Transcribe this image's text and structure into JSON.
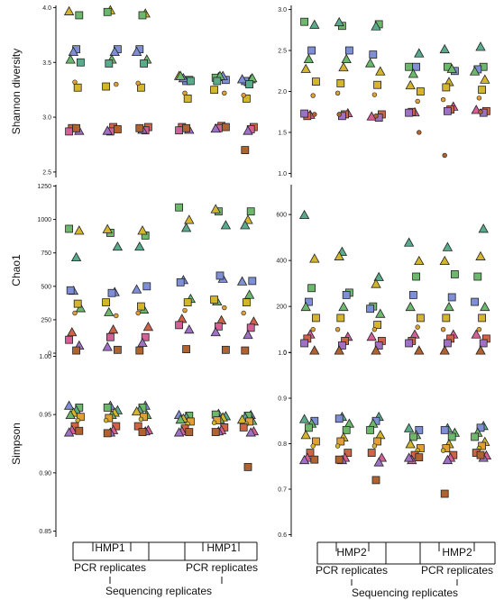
{
  "figure": {
    "colors": {
      "blue": "#7f8fd6",
      "green": "#6cb96c",
      "teal": "#5aab8c",
      "yellow": "#d4b52c",
      "orange": "#e0a032",
      "pink": "#d65f96",
      "red": "#cf6348",
      "brown": "#b0632f",
      "purple": "#a070c6"
    },
    "bottom": {
      "left": {
        "group1": "HMP1",
        "group2": "HMP1",
        "pcr1": "PCR replicates",
        "pcr2": "PCR replicates",
        "seq": "Sequencing replicates"
      },
      "right": {
        "group1": "HMP2",
        "group2": "HMP2",
        "pcr1": "PCR replicates",
        "pcr2": "PCR replicates",
        "seq": "Sequencing replicates"
      }
    }
  },
  "chart_data": [
    {
      "type": "scatter",
      "panel": "shannon-hmp1",
      "ylabel": "Shannon diversity",
      "ylim": [
        2.45,
        4.02
      ],
      "yticks": [
        "2.5",
        "3.0",
        "3.5",
        "4.0"
      ],
      "ytick_values": [
        2.5,
        3.0,
        3.5,
        4.0
      ],
      "x_positions": 6,
      "series": [
        {
          "name": "",
          "color": "yellow",
          "shape": "triangle",
          "values": [
            3.97,
            3.98,
            3.95,
            3.38,
            3.37,
            3.35
          ]
        },
        {
          "name": "",
          "color": "green",
          "shape": "square",
          "values": [
            3.93,
            3.96,
            3.93,
            3.34,
            3.36,
            3.32
          ]
        },
        {
          "name": "",
          "color": "blue",
          "shape": "square",
          "values": [
            3.62,
            3.62,
            3.62,
            3.33,
            3.34,
            3.33
          ]
        },
        {
          "name": "",
          "color": "blue",
          "shape": "triangle",
          "values": [
            3.6,
            3.6,
            3.6,
            3.36,
            3.38,
            3.35
          ]
        },
        {
          "name": "",
          "color": "green",
          "shape": "triangle",
          "values": [
            3.53,
            3.53,
            3.53,
            3.38,
            3.38,
            3.36
          ]
        },
        {
          "name": "",
          "color": "teal",
          "shape": "square",
          "values": [
            3.5,
            3.49,
            3.49,
            3.33,
            3.33,
            3.3
          ]
        },
        {
          "name": "",
          "color": "yellow",
          "shape": "square",
          "values": [
            3.27,
            3.28,
            3.27,
            3.17,
            3.25,
            3.17
          ]
        },
        {
          "name": "",
          "color": "orange",
          "shape": "circle",
          "values": [
            3.32,
            3.3,
            3.31,
            3.22,
            3.22,
            3.2
          ]
        },
        {
          "name": "",
          "color": "red",
          "shape": "square",
          "values": [
            2.9,
            2.91,
            2.91,
            2.91,
            2.92,
            2.91
          ]
        },
        {
          "name": "",
          "color": "pink",
          "shape": "square",
          "values": [
            2.87,
            2.87,
            2.88,
            2.88,
            2.9,
            2.89
          ]
        },
        {
          "name": "",
          "color": "purple",
          "shape": "triangle",
          "values": [
            2.88,
            2.88,
            2.89,
            2.89,
            2.9,
            2.88
          ]
        },
        {
          "name": "",
          "color": "brown",
          "shape": "square",
          "values": [
            2.9,
            2.89,
            2.9,
            2.9,
            2.91,
            2.7
          ]
        }
      ]
    },
    {
      "type": "scatter",
      "panel": "shannon-hmp2",
      "ylabel": "",
      "ylim": [
        0.95,
        3.05
      ],
      "yticks": [
        "1.0",
        "1.5",
        "2.0",
        "2.5",
        "3.0"
      ],
      "ytick_values": [
        1.0,
        1.5,
        2.0,
        2.5,
        3.0
      ],
      "x_positions": 6,
      "series": [
        {
          "name": "",
          "color": "green",
          "shape": "square",
          "values": [
            2.85,
            2.8,
            2.82,
            2.3,
            2.3,
            2.3
          ]
        },
        {
          "name": "",
          "color": "teal",
          "shape": "triangle",
          "values": [
            2.82,
            2.85,
            2.8,
            2.47,
            2.52,
            2.55
          ]
        },
        {
          "name": "",
          "color": "blue",
          "shape": "square",
          "values": [
            2.5,
            2.5,
            2.45,
            2.3,
            2.25,
            2.27
          ]
        },
        {
          "name": "",
          "color": "green",
          "shape": "triangle",
          "values": [
            2.4,
            2.4,
            2.35,
            2.22,
            2.28,
            2.25
          ]
        },
        {
          "name": "",
          "color": "yellow",
          "shape": "triangle",
          "values": [
            2.28,
            2.3,
            2.25,
            2.08,
            2.12,
            2.15
          ]
        },
        {
          "name": "",
          "color": "yellow",
          "shape": "square",
          "values": [
            2.12,
            2.1,
            2.08,
            2.0,
            2.05,
            2.02
          ]
        },
        {
          "name": "",
          "color": "orange",
          "shape": "circle",
          "values": [
            1.95,
            1.98,
            1.96,
            1.88,
            1.9,
            1.92
          ]
        },
        {
          "name": "",
          "color": "pink",
          "shape": "triangle",
          "values": [
            1.72,
            1.74,
            1.7,
            1.75,
            1.82,
            1.78
          ]
        },
        {
          "name": "",
          "color": "red",
          "shape": "square",
          "values": [
            1.7,
            1.72,
            1.72,
            1.75,
            1.78,
            1.76
          ]
        },
        {
          "name": "",
          "color": "purple",
          "shape": "square",
          "values": [
            1.73,
            1.7,
            1.68,
            1.74,
            1.76,
            1.74
          ]
        },
        {
          "name": "",
          "color": "brown",
          "shape": "circle",
          "values": [
            1.72,
            1.72,
            1.7,
            1.5,
            1.22,
            1.75
          ]
        }
      ]
    },
    {
      "type": "scatter",
      "panel": "chao1-hmp1",
      "ylabel": "Chao1",
      "ylim": [
        -20,
        1260
      ],
      "yticks": [
        "0",
        "250",
        "500",
        "750",
        "1000",
        "1250"
      ],
      "ytick_values": [
        0,
        250,
        500,
        750,
        1000,
        1250
      ],
      "x_positions": 6,
      "series": [
        {
          "name": "",
          "color": "green",
          "shape": "square",
          "values": [
            930,
            900,
            880,
            1090,
            1060,
            1060
          ]
        },
        {
          "name": "",
          "color": "yellow",
          "shape": "triangle",
          "values": [
            920,
            930,
            920,
            1000,
            1080,
            1000
          ]
        },
        {
          "name": "",
          "color": "teal",
          "shape": "triangle",
          "values": [
            720,
            800,
            800,
            940,
            960,
            960
          ]
        },
        {
          "name": "",
          "color": "blue",
          "shape": "triangle",
          "values": [
            470,
            460,
            480,
            550,
            560,
            540
          ]
        },
        {
          "name": "",
          "color": "blue",
          "shape": "square",
          "values": [
            470,
            450,
            500,
            530,
            580,
            540
          ]
        },
        {
          "name": "",
          "color": "green",
          "shape": "triangle",
          "values": [
            340,
            310,
            330,
            410,
            390,
            440
          ]
        },
        {
          "name": "",
          "color": "yellow",
          "shape": "square",
          "values": [
            370,
            380,
            350,
            380,
            400,
            380
          ]
        },
        {
          "name": "",
          "color": "orange",
          "shape": "circle",
          "values": [
            300,
            280,
            300,
            320,
            340,
            300
          ]
        },
        {
          "name": "",
          "color": "red",
          "shape": "triangle",
          "values": [
            160,
            180,
            200,
            260,
            250,
            240
          ]
        },
        {
          "name": "",
          "color": "pink",
          "shape": "square",
          "values": [
            100,
            120,
            120,
            210,
            200,
            190
          ]
        },
        {
          "name": "",
          "color": "purple",
          "shape": "triangle",
          "values": [
            60,
            50,
            80,
            180,
            160,
            140
          ]
        },
        {
          "name": "",
          "color": "brown",
          "shape": "square",
          "values": [
            20,
            25,
            20,
            30,
            25,
            20
          ]
        }
      ]
    },
    {
      "type": "scatter",
      "panel": "chao1-hmp2",
      "ylabel": "",
      "ylim": [
        -15,
        730
      ],
      "yticks": [
        "0",
        "200",
        "400",
        "600"
      ],
      "ytick_values": [
        0,
        200,
        400,
        600
      ],
      "x_positions": 6,
      "series": [
        {
          "name": "",
          "color": "teal",
          "shape": "triangle",
          "values": [
            600,
            440,
            330,
            480,
            460,
            540
          ]
        },
        {
          "name": "",
          "color": "yellow",
          "shape": "triangle",
          "values": [
            410,
            420,
            300,
            400,
            400,
            420
          ]
        },
        {
          "name": "",
          "color": "green",
          "shape": "square",
          "values": [
            280,
            260,
            200,
            330,
            340,
            330
          ]
        },
        {
          "name": "",
          "color": "blue",
          "shape": "square",
          "values": [
            220,
            250,
            190,
            250,
            240,
            220
          ]
        },
        {
          "name": "",
          "color": "green",
          "shape": "triangle",
          "values": [
            200,
            200,
            170,
            200,
            200,
            200
          ]
        },
        {
          "name": "",
          "color": "yellow",
          "shape": "square",
          "values": [
            150,
            150,
            120,
            150,
            150,
            150
          ]
        },
        {
          "name": "",
          "color": "orange",
          "shape": "circle",
          "values": [
            100,
            100,
            100,
            110,
            100,
            100
          ]
        },
        {
          "name": "",
          "color": "pink",
          "shape": "triangle",
          "values": [
            80,
            70,
            70,
            80,
            80,
            80
          ]
        },
        {
          "name": "",
          "color": "red",
          "shape": "square",
          "values": [
            60,
            50,
            50,
            50,
            60,
            60
          ]
        },
        {
          "name": "",
          "color": "purple",
          "shape": "square",
          "values": [
            40,
            30,
            30,
            40,
            40,
            40
          ]
        },
        {
          "name": "",
          "color": "brown",
          "shape": "triangle",
          "values": [
            10,
            10,
            10,
            10,
            10,
            10
          ]
        }
      ]
    },
    {
      "type": "scatter",
      "panel": "simpson-hmp1",
      "ylabel": "Simpson",
      "ylim": [
        0.845,
        1.005
      ],
      "yticks": [
        "0.85",
        "0.90",
        "0.95",
        "1.00"
      ],
      "ytick_values": [
        0.85,
        0.9,
        0.95,
        1.0
      ],
      "x_positions": 6,
      "series": [
        {
          "name": "",
          "color": "blue",
          "shape": "triangle",
          "values": [
            0.958,
            0.958,
            0.958,
            0.95,
            0.951,
            0.95
          ]
        },
        {
          "name": "",
          "color": "green",
          "shape": "square",
          "values": [
            0.956,
            0.956,
            0.956,
            0.949,
            0.95,
            0.949
          ]
        },
        {
          "name": "",
          "color": "teal",
          "shape": "triangle",
          "values": [
            0.954,
            0.954,
            0.954,
            0.948,
            0.949,
            0.948
          ]
        },
        {
          "name": "",
          "color": "yellow",
          "shape": "triangle",
          "values": [
            0.952,
            0.952,
            0.953,
            0.947,
            0.948,
            0.946
          ]
        },
        {
          "name": "",
          "color": "green",
          "shape": "triangle",
          "values": [
            0.95,
            0.95,
            0.95,
            0.946,
            0.946,
            0.945
          ]
        },
        {
          "name": "",
          "color": "orange",
          "shape": "square",
          "values": [
            0.948,
            0.947,
            0.948,
            0.944,
            0.945,
            0.944
          ]
        },
        {
          "name": "",
          "color": "yellow",
          "shape": "circle",
          "values": [
            0.945,
            0.945,
            0.946,
            0.942,
            0.943,
            0.942
          ]
        },
        {
          "name": "",
          "color": "red",
          "shape": "square",
          "values": [
            0.94,
            0.94,
            0.94,
            0.938,
            0.939,
            0.939
          ]
        },
        {
          "name": "",
          "color": "pink",
          "shape": "triangle",
          "values": [
            0.937,
            0.937,
            0.937,
            0.936,
            0.937,
            0.936
          ]
        },
        {
          "name": "",
          "color": "purple",
          "shape": "triangle",
          "values": [
            0.935,
            0.935,
            0.936,
            0.935,
            0.936,
            0.935
          ]
        },
        {
          "name": "",
          "color": "brown",
          "shape": "square",
          "values": [
            0.936,
            0.934,
            0.935,
            0.935,
            0.935,
            0.905
          ]
        }
      ]
    },
    {
      "type": "scatter",
      "panel": "simpson-hmp2",
      "ylabel": "",
      "ylim": [
        0.595,
        1.005
      ],
      "yticks": [
        "0.6",
        "0.7",
        "0.8",
        "0.9",
        "1.0"
      ],
      "ytick_values": [
        0.6,
        0.7,
        0.8,
        0.9,
        1.0
      ],
      "x_positions": 6,
      "series": [
        {
          "name": "",
          "color": "teal",
          "shape": "triangle",
          "values": [
            0.855,
            0.86,
            0.86,
            0.835,
            0.835,
            0.84
          ]
        },
        {
          "name": "",
          "color": "blue",
          "shape": "square",
          "values": [
            0.85,
            0.855,
            0.85,
            0.83,
            0.83,
            0.835
          ]
        },
        {
          "name": "",
          "color": "green",
          "shape": "triangle",
          "values": [
            0.845,
            0.845,
            0.845,
            0.82,
            0.825,
            0.825
          ]
        },
        {
          "name": "",
          "color": "green",
          "shape": "square",
          "values": [
            0.835,
            0.83,
            0.83,
            0.815,
            0.815,
            0.815
          ]
        },
        {
          "name": "",
          "color": "yellow",
          "shape": "triangle",
          "values": [
            0.82,
            0.815,
            0.82,
            0.8,
            0.8,
            0.805
          ]
        },
        {
          "name": "",
          "color": "orange",
          "shape": "square",
          "values": [
            0.805,
            0.805,
            0.805,
            0.79,
            0.79,
            0.795
          ]
        },
        {
          "name": "",
          "color": "yellow",
          "shape": "circle",
          "values": [
            0.795,
            0.795,
            0.795,
            0.785,
            0.785,
            0.79
          ]
        },
        {
          "name": "",
          "color": "red",
          "shape": "square",
          "values": [
            0.78,
            0.78,
            0.78,
            0.775,
            0.775,
            0.78
          ]
        },
        {
          "name": "",
          "color": "pink",
          "shape": "triangle",
          "values": [
            0.77,
            0.77,
            0.77,
            0.765,
            0.77,
            0.775
          ]
        },
        {
          "name": "",
          "color": "purple",
          "shape": "triangle",
          "values": [
            0.765,
            0.765,
            0.76,
            0.77,
            0.765,
            0.77
          ]
        },
        {
          "name": "",
          "color": "brown",
          "shape": "square",
          "values": [
            0.765,
            0.765,
            0.72,
            0.77,
            0.69,
            0.775
          ]
        }
      ]
    }
  ]
}
